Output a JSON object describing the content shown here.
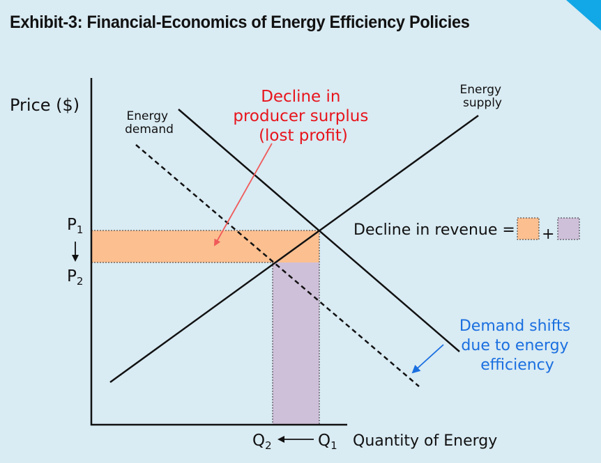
{
  "title": "Exhibit-3: Financial-Economics of Energy Efficiency Policies",
  "axes": {
    "y_label": "Price ($)",
    "x_label": "Quantity of Energy",
    "p1": "P",
    "p1_sub": "1",
    "p2": "P",
    "p2_sub": "2",
    "q1": "Q",
    "q1_sub": "1",
    "q2": "Q",
    "q2_sub": "2"
  },
  "curves": {
    "supply_line1": "Energy",
    "supply_line2": "supply",
    "demand_line1": "Energy",
    "demand_line2": "demand"
  },
  "annotations": {
    "producer_surplus": [
      "Decline in",
      "producer surplus",
      "(lost profit)"
    ],
    "revenue_label": "Decline in revenue =",
    "revenue_plus": "+",
    "demand_shift": [
      "Demand shifts",
      "due to energy",
      "efficiency"
    ]
  },
  "colors": {
    "background": "#d9ebf3",
    "orange_area": "#fbbf90",
    "purple_area": "#cfc0da",
    "red_text": "#e8141c",
    "blue_text": "#1a6fe0",
    "corner_accent": "#12a7e6"
  }
}
